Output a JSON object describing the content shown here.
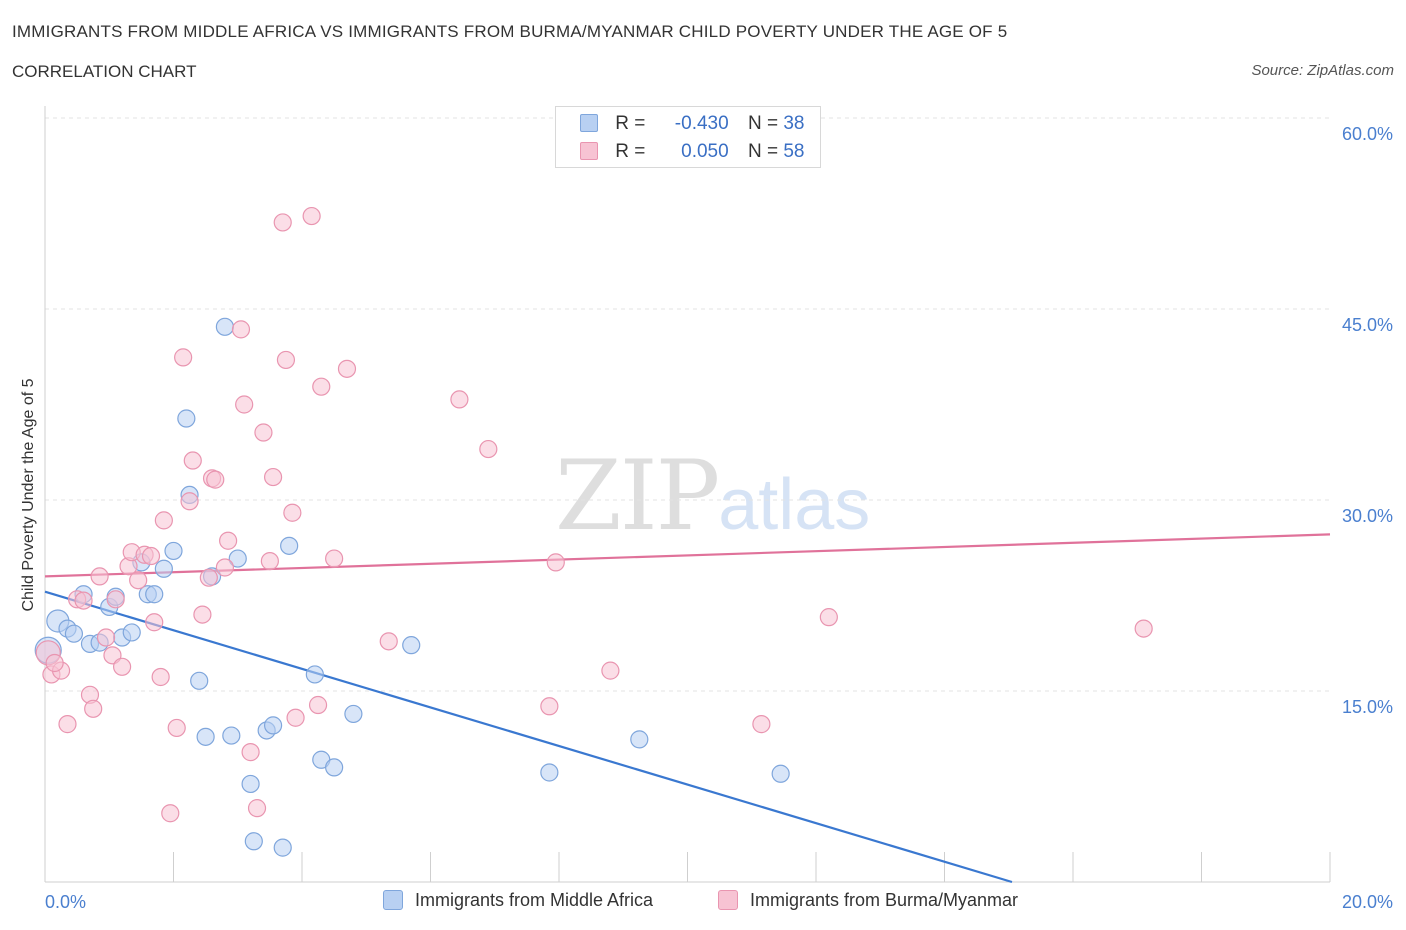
{
  "header": {
    "title": "IMMIGRANTS FROM MIDDLE AFRICA VS IMMIGRANTS FROM BURMA/MYANMAR CHILD POVERTY UNDER THE AGE OF 5",
    "subtitle": "CORRELATION CHART",
    "source": "Source: ZipAtlas.com"
  },
  "watermark": {
    "zip": "ZIP",
    "atlas": "atlas"
  },
  "legend": {
    "series": [
      {
        "r_label": "R =",
        "r_value": "-0.430",
        "n_label": "N =",
        "n_value": "38"
      },
      {
        "r_label": "R =",
        "r_value": "0.050",
        "n_label": "N =",
        "n_value": "58"
      }
    ]
  },
  "colors": {
    "blue_fill": "#b8d0f2",
    "blue_stroke": "#7fa6dc",
    "blue_line": "#3a78d0",
    "pink_fill": "#f7c3d3",
    "pink_stroke": "#e995b0",
    "pink_line": "#e0729a",
    "tick": "#4a7fcf",
    "grid": "#e3e3e3"
  },
  "chart_data": {
    "type": "scatter",
    "title": "IMMIGRANTS FROM MIDDLE AFRICA VS IMMIGRANTS FROM BURMA/MYANMAR CHILD POVERTY UNDER THE AGE OF 5",
    "xlabel": "",
    "ylabel": "Child Poverty Under the Age of 5",
    "xlim": [
      0,
      20
    ],
    "ylim": [
      0,
      60
    ],
    "x_tick_labels": [
      "0.0%",
      "20.0%"
    ],
    "y_ticks": [
      15,
      30,
      45,
      60
    ],
    "y_tick_labels": [
      "15.0%",
      "30.0%",
      "45.0%",
      "60.0%"
    ],
    "grid": true,
    "legend_position": "top-center",
    "series": [
      {
        "name": "Immigrants from Middle Africa",
        "color": "#b8d0f2",
        "points": [
          [
            0.05,
            18.2
          ],
          [
            0.2,
            20.5
          ],
          [
            0.35,
            19.9
          ],
          [
            0.45,
            19.5
          ],
          [
            0.6,
            22.6
          ],
          [
            0.7,
            18.7
          ],
          [
            0.85,
            18.8
          ],
          [
            1.0,
            21.6
          ],
          [
            1.1,
            22.4
          ],
          [
            1.2,
            19.2
          ],
          [
            1.35,
            19.6
          ],
          [
            1.5,
            25.1
          ],
          [
            1.6,
            22.6
          ],
          [
            1.7,
            22.6
          ],
          [
            1.85,
            24.6
          ],
          [
            2.0,
            26.0
          ],
          [
            2.2,
            36.4
          ],
          [
            2.25,
            30.4
          ],
          [
            2.4,
            15.8
          ],
          [
            2.5,
            11.4
          ],
          [
            2.6,
            24.0
          ],
          [
            2.8,
            43.6
          ],
          [
            2.9,
            11.5
          ],
          [
            3.0,
            25.4
          ],
          [
            3.2,
            7.7
          ],
          [
            3.25,
            3.2
          ],
          [
            3.45,
            11.9
          ],
          [
            3.55,
            12.3
          ],
          [
            3.7,
            2.7
          ],
          [
            3.8,
            26.4
          ],
          [
            4.2,
            16.3
          ],
          [
            4.3,
            9.6
          ],
          [
            4.5,
            9.0
          ],
          [
            4.8,
            13.2
          ],
          [
            5.7,
            18.6
          ],
          [
            7.85,
            8.6
          ],
          [
            9.25,
            11.2
          ],
          [
            11.45,
            8.5
          ]
        ],
        "trend": {
          "x": [
            0,
            15.05
          ],
          "y": [
            22.8,
            0
          ]
        }
      },
      {
        "name": "Immigrants from Burma/Myanmar",
        "color": "#f7c3d3",
        "points": [
          [
            0.05,
            18.0
          ],
          [
            0.1,
            16.3
          ],
          [
            0.25,
            16.6
          ],
          [
            0.35,
            12.4
          ],
          [
            0.5,
            22.2
          ],
          [
            0.6,
            22.1
          ],
          [
            0.7,
            14.7
          ],
          [
            0.75,
            13.6
          ],
          [
            0.85,
            24.0
          ],
          [
            0.95,
            19.2
          ],
          [
            1.05,
            17.8
          ],
          [
            1.1,
            22.2
          ],
          [
            1.2,
            16.9
          ],
          [
            1.3,
            24.8
          ],
          [
            1.35,
            25.9
          ],
          [
            1.45,
            23.7
          ],
          [
            1.55,
            25.7
          ],
          [
            1.65,
            25.6
          ],
          [
            1.7,
            20.4
          ],
          [
            1.8,
            16.1
          ],
          [
            1.85,
            28.4
          ],
          [
            1.95,
            5.4
          ],
          [
            2.05,
            12.1
          ],
          [
            2.15,
            41.2
          ],
          [
            2.25,
            29.9
          ],
          [
            2.3,
            33.1
          ],
          [
            2.45,
            21.0
          ],
          [
            2.55,
            23.9
          ],
          [
            2.6,
            31.7
          ],
          [
            2.65,
            31.6
          ],
          [
            2.8,
            24.7
          ],
          [
            2.85,
            26.8
          ],
          [
            3.05,
            43.4
          ],
          [
            3.1,
            37.5
          ],
          [
            3.2,
            10.2
          ],
          [
            3.3,
            5.8
          ],
          [
            3.4,
            35.3
          ],
          [
            3.5,
            25.2
          ],
          [
            3.55,
            31.8
          ],
          [
            3.7,
            51.8
          ],
          [
            3.75,
            41.0
          ],
          [
            3.85,
            29.0
          ],
          [
            3.9,
            12.9
          ],
          [
            4.15,
            52.3
          ],
          [
            4.25,
            13.9
          ],
          [
            4.3,
            38.9
          ],
          [
            4.5,
            25.4
          ],
          [
            4.7,
            40.3
          ],
          [
            5.35,
            18.9
          ],
          [
            6.45,
            37.9
          ],
          [
            6.9,
            34.0
          ],
          [
            7.85,
            13.8
          ],
          [
            7.95,
            25.1
          ],
          [
            8.8,
            16.6
          ],
          [
            11.15,
            12.4
          ],
          [
            12.2,
            20.8
          ],
          [
            17.1,
            19.9
          ],
          [
            0.15,
            17.2
          ]
        ],
        "trend": {
          "x": [
            0,
            20
          ],
          "y": [
            24.0,
            27.3
          ]
        }
      }
    ]
  }
}
